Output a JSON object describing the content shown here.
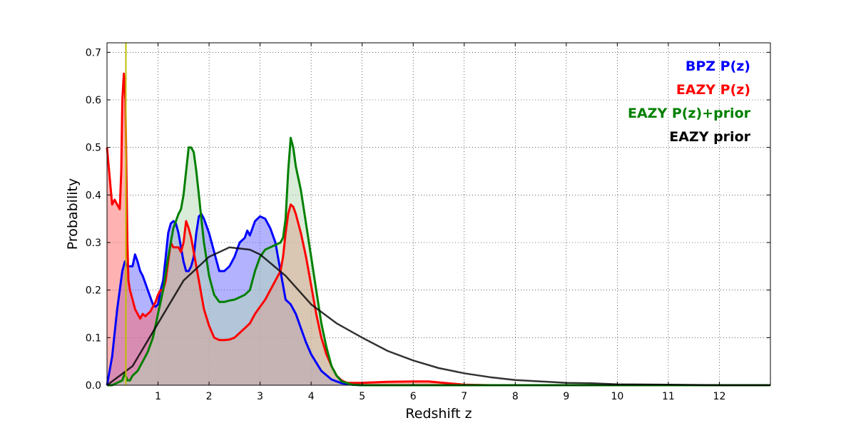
{
  "chart_data": {
    "type": "area",
    "xlabel": "Redshift z",
    "ylabel": "Probability",
    "xlim": [
      0,
      13
    ],
    "ylim": [
      0,
      0.72
    ],
    "x_ticks": [
      1,
      2,
      3,
      4,
      5,
      6,
      7,
      8,
      9,
      10,
      11,
      12
    ],
    "y_ticks": [
      0.0,
      0.1,
      0.2,
      0.3,
      0.4,
      0.5,
      0.6,
      0.7
    ],
    "y_tick_labels": [
      "0.0",
      "0.1",
      "0.2",
      "0.3",
      "0.4",
      "0.5",
      "0.6",
      "0.7"
    ],
    "grid": true,
    "legend_position": "top-right",
    "vline": {
      "x": 0.37,
      "color": "#bfbf00"
    },
    "series": [
      {
        "name": "BPZ P(z)",
        "color": "#0000ff",
        "fill": "#6666ff",
        "x": [
          0.0,
          0.1,
          0.2,
          0.3,
          0.35,
          0.4,
          0.45,
          0.5,
          0.55,
          0.6,
          0.65,
          0.7,
          0.75,
          0.8,
          0.85,
          0.9,
          0.95,
          1.0,
          1.05,
          1.1,
          1.15,
          1.2,
          1.25,
          1.3,
          1.35,
          1.4,
          1.45,
          1.5,
          1.55,
          1.6,
          1.65,
          1.7,
          1.75,
          1.8,
          1.85,
          1.9,
          2.0,
          2.1,
          2.2,
          2.3,
          2.4,
          2.5,
          2.6,
          2.7,
          2.75,
          2.8,
          2.9,
          3.0,
          3.1,
          3.2,
          3.3,
          3.4,
          3.5,
          3.6,
          3.7,
          3.8,
          3.9,
          4.0,
          4.2,
          4.4,
          4.6,
          4.8,
          5.0,
          5.2,
          13.0
        ],
        "values": [
          0.0,
          0.06,
          0.16,
          0.24,
          0.26,
          0.25,
          0.25,
          0.25,
          0.275,
          0.26,
          0.24,
          0.23,
          0.215,
          0.2,
          0.185,
          0.17,
          0.165,
          0.17,
          0.2,
          0.22,
          0.27,
          0.32,
          0.34,
          0.345,
          0.34,
          0.32,
          0.29,
          0.26,
          0.24,
          0.24,
          0.25,
          0.27,
          0.32,
          0.355,
          0.36,
          0.35,
          0.32,
          0.28,
          0.24,
          0.24,
          0.25,
          0.27,
          0.3,
          0.31,
          0.325,
          0.315,
          0.345,
          0.355,
          0.35,
          0.33,
          0.3,
          0.24,
          0.18,
          0.17,
          0.15,
          0.12,
          0.09,
          0.065,
          0.03,
          0.012,
          0.004,
          0.001,
          0.0,
          0.0,
          0.0
        ]
      },
      {
        "name": "EAZY P(z)",
        "color": "#ff0000",
        "fill": "#ff6666",
        "x": [
          0.0,
          0.05,
          0.1,
          0.15,
          0.2,
          0.25,
          0.28,
          0.3,
          0.33,
          0.36,
          0.38,
          0.4,
          0.42,
          0.45,
          0.5,
          0.55,
          0.6,
          0.65,
          0.7,
          0.75,
          0.8,
          0.85,
          0.9,
          0.95,
          1.0,
          1.05,
          1.1,
          1.15,
          1.2,
          1.25,
          1.3,
          1.35,
          1.4,
          1.45,
          1.5,
          1.55,
          1.6,
          1.65,
          1.7,
          1.75,
          1.8,
          1.85,
          1.9,
          2.0,
          2.1,
          2.2,
          2.3,
          2.4,
          2.5,
          2.6,
          2.7,
          2.8,
          2.9,
          3.0,
          3.1,
          3.2,
          3.3,
          3.4,
          3.45,
          3.5,
          3.55,
          3.6,
          3.65,
          3.7,
          3.8,
          3.9,
          4.0,
          4.1,
          4.2,
          4.3,
          4.4,
          4.5,
          4.6,
          4.7,
          4.8,
          5.0,
          5.5,
          6.0,
          6.3,
          6.6,
          7.0,
          7.5,
          13.0
        ],
        "values": [
          0.5,
          0.44,
          0.38,
          0.39,
          0.38,
          0.37,
          0.45,
          0.6,
          0.655,
          0.6,
          0.45,
          0.3,
          0.22,
          0.2,
          0.18,
          0.16,
          0.15,
          0.14,
          0.15,
          0.145,
          0.15,
          0.155,
          0.165,
          0.175,
          0.19,
          0.2,
          0.2,
          0.22,
          0.26,
          0.3,
          0.29,
          0.29,
          0.29,
          0.28,
          0.3,
          0.345,
          0.33,
          0.31,
          0.28,
          0.25,
          0.22,
          0.19,
          0.16,
          0.125,
          0.1,
          0.095,
          0.095,
          0.096,
          0.1,
          0.11,
          0.12,
          0.13,
          0.15,
          0.165,
          0.18,
          0.2,
          0.22,
          0.24,
          0.27,
          0.32,
          0.36,
          0.38,
          0.375,
          0.36,
          0.32,
          0.27,
          0.21,
          0.15,
          0.1,
          0.065,
          0.04,
          0.02,
          0.01,
          0.005,
          0.005,
          0.005,
          0.007,
          0.008,
          0.008,
          0.005,
          0.001,
          0.0,
          0.0
        ]
      },
      {
        "name": "EAZY P(z)+prior",
        "color": "#008000",
        "fill": "#b3d9b3",
        "x": [
          0.0,
          0.1,
          0.2,
          0.3,
          0.35,
          0.4,
          0.45,
          0.5,
          0.6,
          0.7,
          0.8,
          0.9,
          1.0,
          1.1,
          1.2,
          1.3,
          1.4,
          1.45,
          1.5,
          1.55,
          1.6,
          1.65,
          1.7,
          1.75,
          1.8,
          1.85,
          1.9,
          2.0,
          2.1,
          2.2,
          2.3,
          2.4,
          2.5,
          2.6,
          2.7,
          2.8,
          2.9,
          3.0,
          3.1,
          3.2,
          3.3,
          3.4,
          3.45,
          3.5,
          3.55,
          3.6,
          3.65,
          3.7,
          3.8,
          3.9,
          4.0,
          4.1,
          4.2,
          4.3,
          4.4,
          4.5,
          4.6,
          4.8,
          5.0,
          13.0
        ],
        "values": [
          0.0,
          0.0,
          0.005,
          0.01,
          0.025,
          0.01,
          0.01,
          0.02,
          0.03,
          0.05,
          0.07,
          0.1,
          0.15,
          0.2,
          0.27,
          0.33,
          0.36,
          0.37,
          0.4,
          0.45,
          0.5,
          0.5,
          0.49,
          0.45,
          0.4,
          0.35,
          0.3,
          0.23,
          0.19,
          0.175,
          0.175,
          0.178,
          0.18,
          0.185,
          0.19,
          0.2,
          0.24,
          0.27,
          0.285,
          0.29,
          0.295,
          0.3,
          0.31,
          0.35,
          0.45,
          0.52,
          0.5,
          0.46,
          0.41,
          0.34,
          0.27,
          0.2,
          0.13,
          0.08,
          0.04,
          0.02,
          0.008,
          0.001,
          0.0,
          0.0
        ]
      },
      {
        "name": "EAZY prior",
        "color": "#000000",
        "fill": "none",
        "x": [
          0.0,
          0.5,
          1.0,
          1.5,
          2.0,
          2.4,
          2.8,
          3.0,
          3.5,
          4.0,
          4.5,
          5.0,
          5.5,
          6.0,
          6.5,
          7.0,
          7.5,
          8.0,
          8.5,
          9.0,
          9.5,
          10.0,
          11.0,
          12.0,
          13.0
        ],
        "values": [
          0.0,
          0.04,
          0.13,
          0.22,
          0.27,
          0.29,
          0.285,
          0.275,
          0.23,
          0.17,
          0.13,
          0.1,
          0.072,
          0.052,
          0.036,
          0.025,
          0.017,
          0.011,
          0.008,
          0.005,
          0.004,
          0.002,
          0.001,
          0.0,
          0.0
        ]
      }
    ]
  }
}
